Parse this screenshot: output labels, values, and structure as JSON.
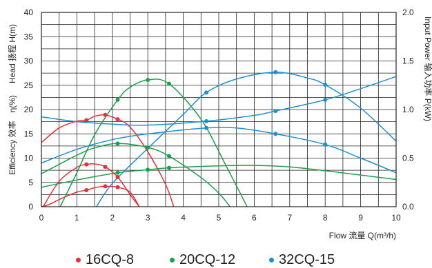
{
  "chart_data": {
    "type": "line",
    "x": {
      "label": "Flow 流量 Q(m³/h)",
      "range": [
        0,
        10
      ],
      "ticks": [
        "0",
        "1",
        "2",
        "3",
        "4",
        "5",
        "6",
        "7",
        "8",
        "9",
        "10"
      ]
    },
    "y_left": {
      "label_top": "Head 扬程 H(m)",
      "label_bottom": "Efficiency 效率　η(%)",
      "range": [
        0,
        40
      ],
      "ticks": [
        "0",
        "5",
        "10",
        "15",
        "20",
        "25",
        "30",
        "35",
        "40"
      ]
    },
    "y_right": {
      "label": "Input Power 输入功率 P(kW)",
      "range": [
        0,
        2.0
      ],
      "ticks": [
        "0.0",
        "0.5",
        "1.0",
        "1.5",
        "2.0"
      ]
    },
    "grid": true,
    "legend_position": "bottom",
    "series": [
      {
        "name": "16CQ-8",
        "color": "#e53035",
        "head": [
          [
            0.0,
            13.2
          ],
          [
            0.5,
            16.2
          ],
          [
            1.0,
            17.6
          ],
          [
            1.27,
            17.8
          ],
          [
            1.5,
            18.6
          ],
          [
            1.8,
            18.9
          ],
          [
            2.15,
            18.0
          ],
          [
            2.5,
            16.4
          ],
          [
            3.0,
            11.3
          ],
          [
            3.5,
            4.6
          ],
          [
            3.73,
            0.0
          ]
        ],
        "head_markers": [
          [
            1.27,
            17.8
          ],
          [
            1.8,
            18.9
          ],
          [
            2.15,
            18.0
          ]
        ],
        "efficiency": [
          [
            0.05,
            0.0
          ],
          [
            0.5,
            5.2
          ],
          [
            1.0,
            8.1
          ],
          [
            1.27,
            8.7
          ],
          [
            1.5,
            8.8
          ],
          [
            1.8,
            8.2
          ],
          [
            2.15,
            6.1
          ],
          [
            2.5,
            2.5
          ],
          [
            2.76,
            0.0
          ]
        ],
        "efficiency_markers": [
          [
            1.27,
            8.7
          ],
          [
            1.8,
            8.2
          ],
          [
            2.15,
            6.1
          ]
        ],
        "power": [
          [
            0.0,
            0.0
          ],
          [
            0.2,
            0.4
          ],
          [
            0.6,
            1.8
          ],
          [
            1.0,
            3.0
          ],
          [
            1.27,
            3.4
          ],
          [
            1.5,
            3.9
          ],
          [
            1.8,
            4.2
          ],
          [
            2.15,
            4.0
          ],
          [
            2.5,
            3.0
          ],
          [
            2.76,
            0.0
          ]
        ],
        "power_markers": [
          [
            1.27,
            3.4
          ],
          [
            1.8,
            4.2
          ],
          [
            2.15,
            4.0
          ]
        ]
      },
      {
        "name": "20CQ-12",
        "color": "#1aa04a",
        "head": [
          [
            0.0,
            6.8
          ],
          [
            1.0,
            10.6
          ],
          [
            1.5,
            12.1
          ],
          [
            2.15,
            13.0
          ],
          [
            3.0,
            12.2
          ],
          [
            3.6,
            10.4
          ],
          [
            4.5,
            6.0
          ],
          [
            5.0,
            2.8
          ],
          [
            5.32,
            0.0
          ]
        ],
        "head_markers": [
          [
            2.15,
            13.0
          ],
          [
            3.0,
            12.2
          ],
          [
            3.6,
            10.4
          ]
        ],
        "efficiency": [
          [
            0.53,
            0.0
          ],
          [
            1.0,
            7.0
          ],
          [
            1.5,
            14.8
          ],
          [
            2.15,
            22.0
          ],
          [
            2.5,
            24.6
          ],
          [
            3.0,
            26.1
          ],
          [
            3.6,
            25.3
          ],
          [
            4.5,
            18.0
          ],
          [
            5.2,
            8.5
          ],
          [
            5.8,
            0.0
          ]
        ],
        "efficiency_markers": [
          [
            2.15,
            22.0
          ],
          [
            3.0,
            26.1
          ],
          [
            3.6,
            25.3
          ]
        ],
        "power": [
          [
            0.0,
            4.0
          ],
          [
            1.0,
            5.5
          ],
          [
            2.15,
            7.0
          ],
          [
            3.0,
            7.6
          ],
          [
            3.6,
            8.0
          ],
          [
            5.0,
            8.4
          ],
          [
            6.0,
            8.5
          ],
          [
            7.0,
            8.2
          ],
          [
            8.0,
            7.4
          ],
          [
            10.0,
            5.6
          ]
        ],
        "power_markers": [
          [
            2.15,
            7.0
          ],
          [
            3.0,
            7.6
          ],
          [
            3.6,
            8.0
          ]
        ]
      },
      {
        "name": "32CQ-15",
        "color": "#1e8fd0",
        "head": [
          [
            0.0,
            18.5
          ],
          [
            1.0,
            17.5
          ],
          [
            2.0,
            17.0
          ],
          [
            3.0,
            16.8
          ],
          [
            4.65,
            17.6
          ],
          [
            6.0,
            18.8
          ],
          [
            6.6,
            19.7
          ],
          [
            8.0,
            22.0
          ],
          [
            9.0,
            24.3
          ],
          [
            10.0,
            26.8
          ]
        ],
        "head_markers": [
          [
            4.65,
            17.6
          ],
          [
            6.6,
            19.7
          ],
          [
            8.0,
            22.0
          ]
        ],
        "efficiency": [
          [
            1.55,
            0.0
          ],
          [
            2.0,
            4.8
          ],
          [
            3.0,
            12.0
          ],
          [
            4.0,
            19.0
          ],
          [
            4.65,
            23.5
          ],
          [
            5.5,
            26.3
          ],
          [
            6.6,
            27.7
          ],
          [
            7.5,
            26.5
          ],
          [
            8.0,
            25.1
          ],
          [
            9.0,
            20.3
          ],
          [
            10.0,
            13.5
          ]
        ],
        "efficiency_markers": [
          [
            4.65,
            23.5
          ],
          [
            6.6,
            27.7
          ],
          [
            8.0,
            25.1
          ]
        ],
        "power": [
          [
            0.0,
            9.0
          ],
          [
            1.0,
            11.8
          ],
          [
            2.0,
            13.8
          ],
          [
            3.0,
            15.0
          ],
          [
            4.65,
            16.2
          ],
          [
            5.5,
            16.2
          ],
          [
            6.6,
            15.0
          ],
          [
            8.0,
            12.8
          ],
          [
            9.0,
            10.0
          ],
          [
            10.0,
            7.0
          ]
        ],
        "power_markers": [
          [
            4.65,
            16.2
          ],
          [
            6.6,
            15.0
          ],
          [
            8.0,
            12.8
          ]
        ]
      }
    ]
  }
}
